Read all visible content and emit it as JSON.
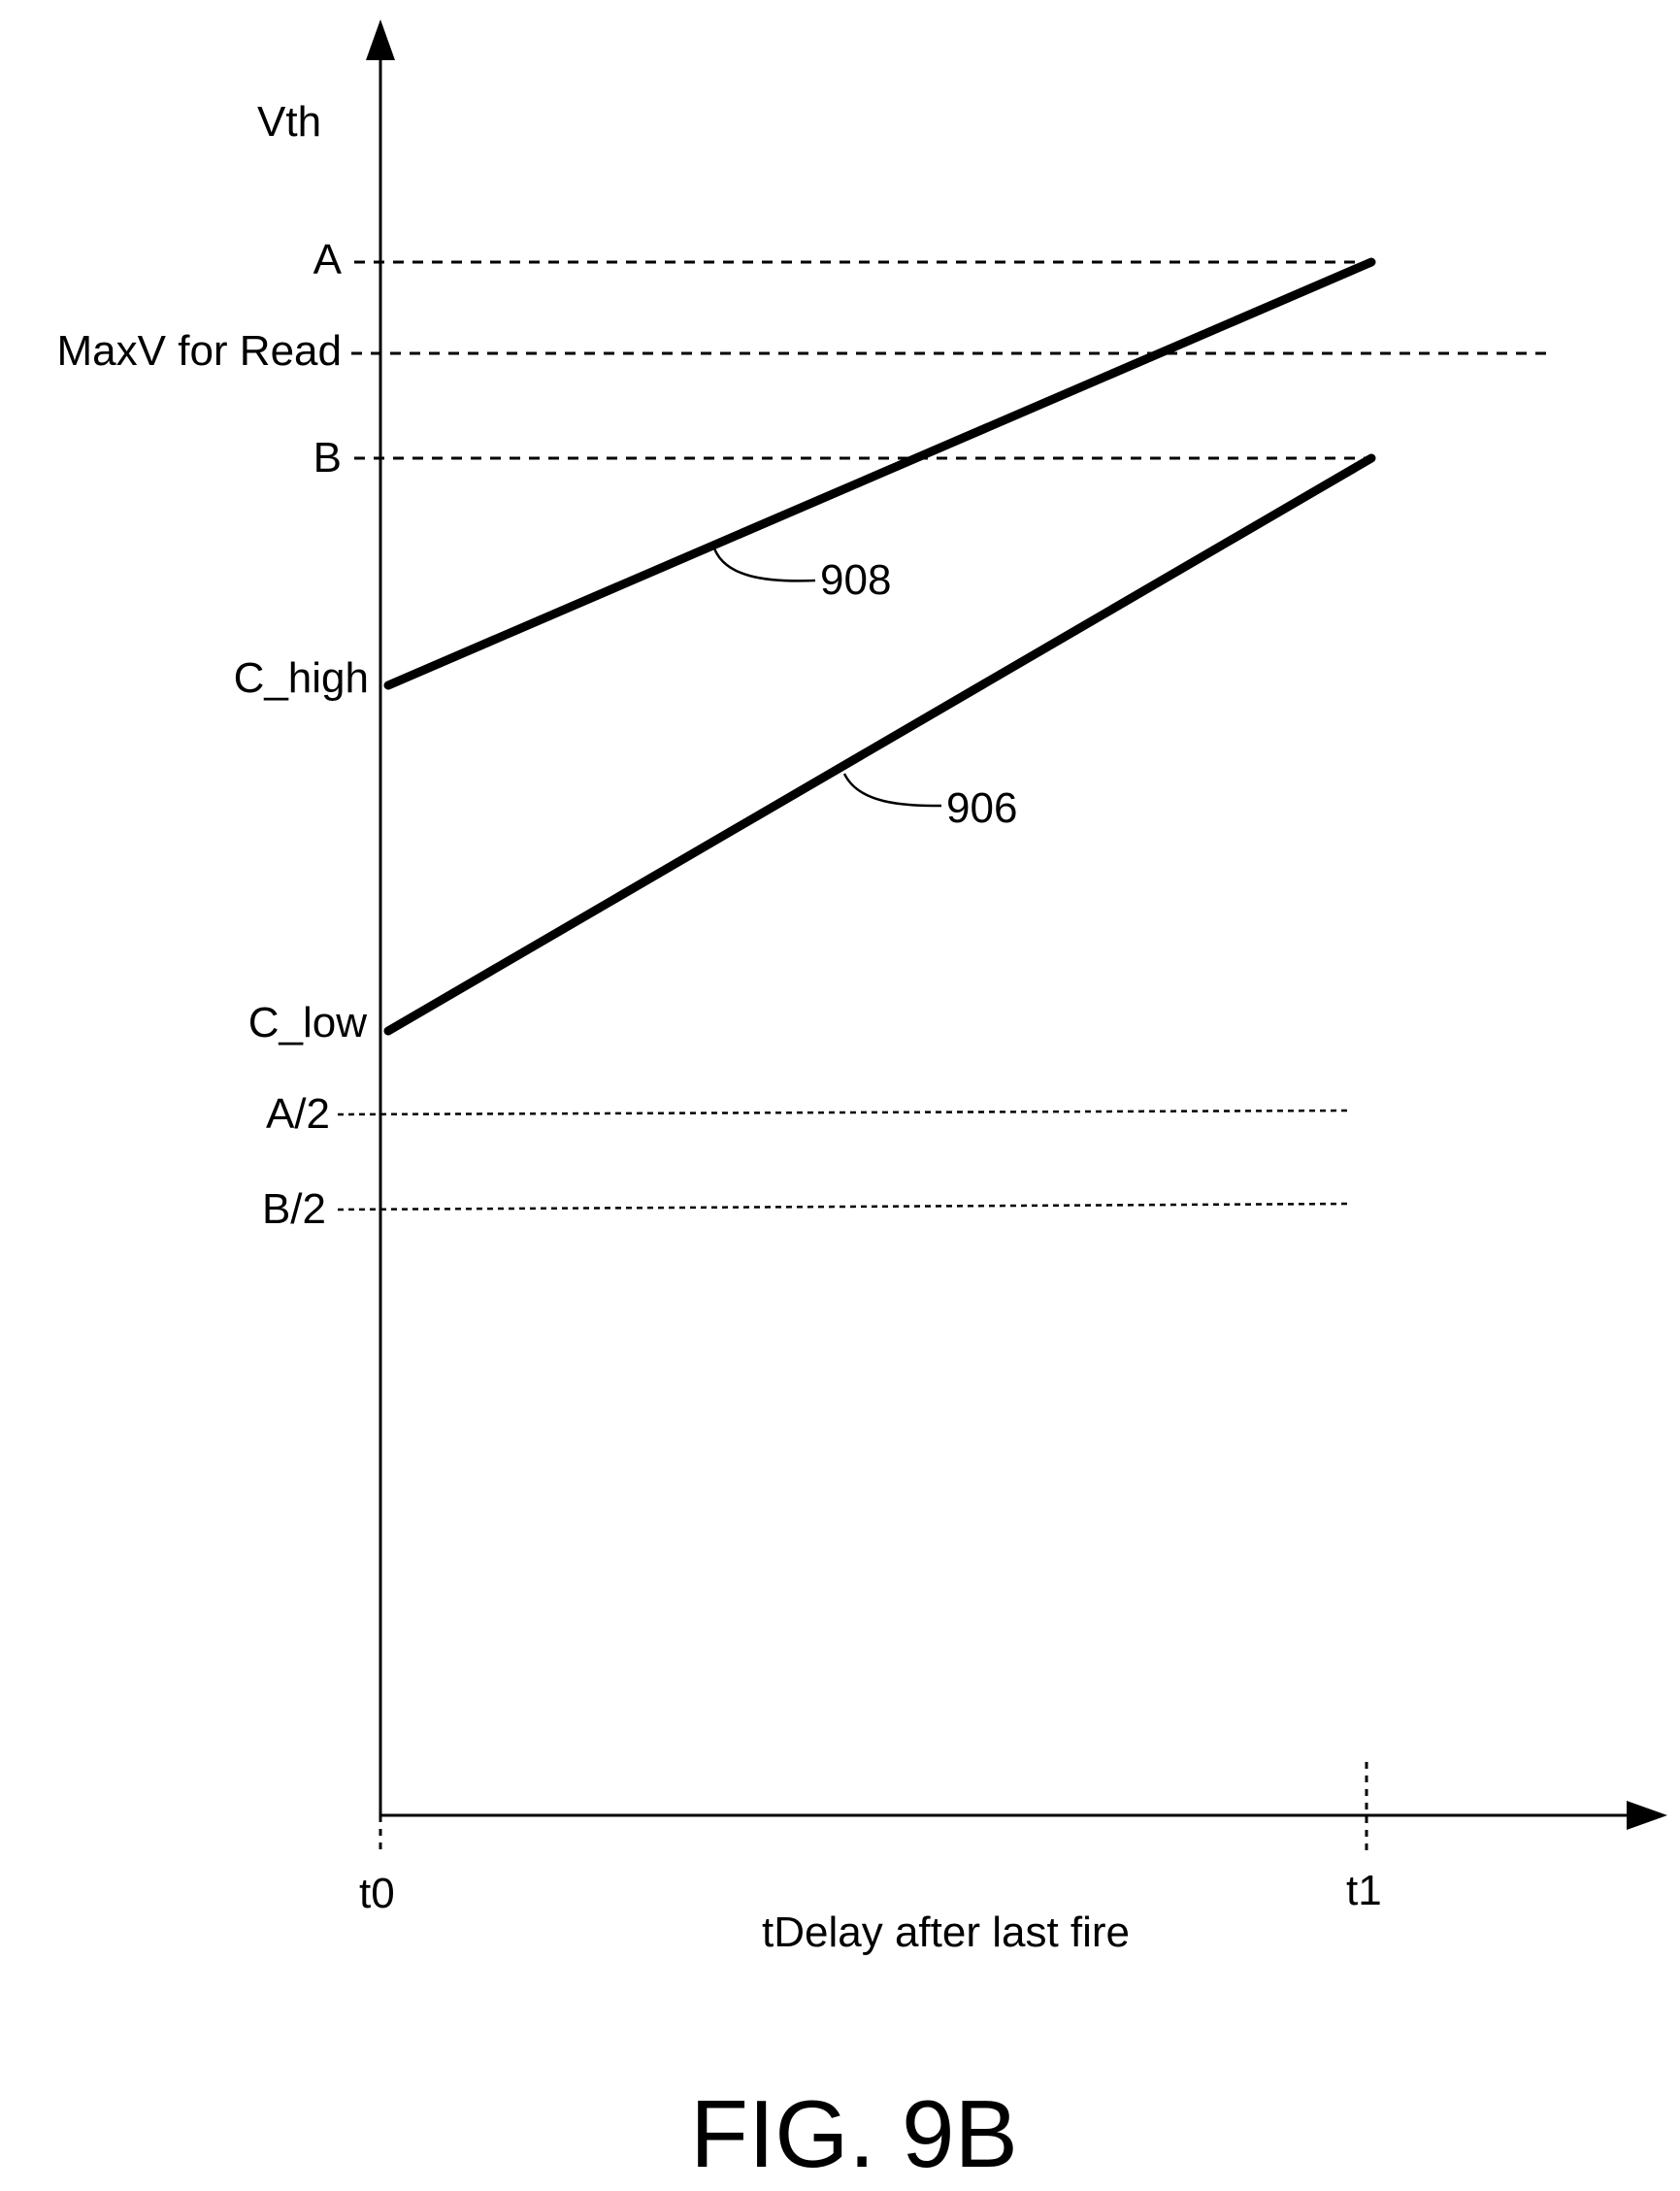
{
  "figure": {
    "caption": "FIG. 9B",
    "y_axis_label": "Vth",
    "x_axis_label": "tDelay after last fire",
    "x_ticks": [
      {
        "id": "t0",
        "label": "t0"
      },
      {
        "id": "t1",
        "label": "t1"
      }
    ],
    "levels": [
      {
        "id": "A",
        "label": "A",
        "style": "dashed",
        "extends_to": "t1"
      },
      {
        "id": "MaxV",
        "label": "MaxV for Read",
        "style": "dashed",
        "extends_to": "beyond-t1"
      },
      {
        "id": "B",
        "label": "B",
        "style": "dashed",
        "extends_to": "t1"
      },
      {
        "id": "C_high",
        "label": "C_high",
        "style": "none"
      },
      {
        "id": "C_low",
        "label": "C_low",
        "style": "none"
      },
      {
        "id": "A_half",
        "label": "A/2",
        "style": "dotted",
        "extends_to": "t1"
      },
      {
        "id": "B_half",
        "label": "B/2",
        "style": "dotted",
        "extends_to": "t1"
      }
    ],
    "curves": [
      {
        "ref": "908",
        "from": {
          "x": "t0",
          "level": "C_high"
        },
        "to": {
          "x": "t1",
          "level": "A"
        }
      },
      {
        "ref": "906",
        "from": {
          "x": "t0",
          "level": "C_low"
        },
        "to": {
          "x": "t1",
          "level": "B"
        }
      }
    ],
    "reference_numerals": [
      {
        "ref": "908",
        "label": "908"
      },
      {
        "ref": "906",
        "label": "906"
      }
    ]
  }
}
